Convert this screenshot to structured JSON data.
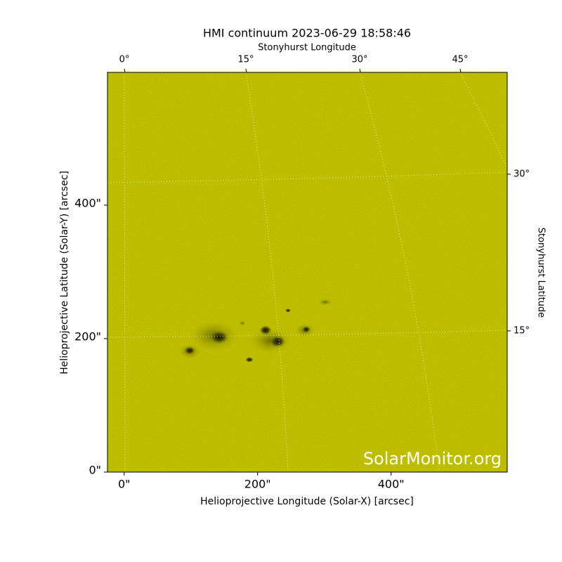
{
  "chart_data": {
    "type": "image",
    "title": "HMI continuum 2023-06-29 18:58:46",
    "x_label": "Helioprojective Longitude (Solar-X) [arcsec]",
    "y_label": "Helioprojective Latitude (Solar-Y) [arcsec]",
    "top_label": "Stonyhurst Longitude",
    "right_label": "Stonyhurst Latitude",
    "xlim": [
      -25,
      574
    ],
    "ylim": [
      0,
      599
    ],
    "xticks": [
      {
        "value": 0,
        "label": "0\""
      },
      {
        "value": 200,
        "label": "200\""
      },
      {
        "value": 400,
        "label": "400\""
      }
    ],
    "yticks": [
      {
        "value": 0,
        "label": "0\""
      },
      {
        "value": 200,
        "label": "200\""
      },
      {
        "value": 400,
        "label": "400\""
      }
    ],
    "top_ticks": [
      "0°",
      "15°",
      "30°",
      "45°"
    ],
    "right_ticks": [
      "30°",
      "15°"
    ],
    "color": "#c9c900",
    "watermark": "SolarMonitor.org"
  }
}
